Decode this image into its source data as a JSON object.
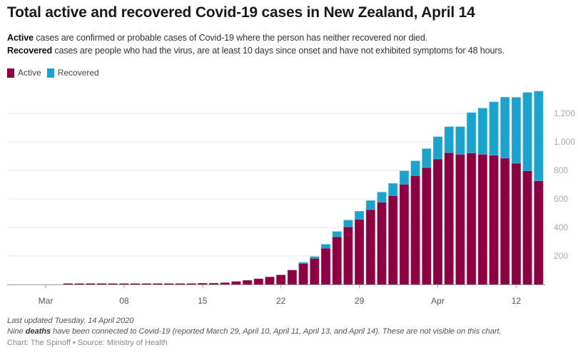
{
  "title": "Total active and recovered Covid-19 cases in New Zealand, April 14",
  "description": {
    "line1_bold": "Active",
    "line1_rest": " cases are confirmed or probable cases of Covid-19 where the person has neither recovered nor died.",
    "line2_bold": "Recovered",
    "line2_rest": " cases are people who had the virus, are at least 10 days since onset and have not exhibited symptoms for 48 hours."
  },
  "notes": {
    "updated": "Last updated Tuesday, 14 April 2020",
    "deaths_pre": "Nine ",
    "deaths_bold": "deaths",
    "deaths_post": " have been connected to Covid-19 (reported March 29, April 10, April 11, April 13, and April 14). These are not visible on this chart."
  },
  "credit": "Chart: The Spinoff • Source: Ministry of Health",
  "colors": {
    "active": "#8c0042",
    "recovered": "#1ba3cf",
    "grid": "#ececec",
    "axis": "#999999",
    "tick_label": "#aaaaaa"
  },
  "chart_data": {
    "type": "bar",
    "stacked": true,
    "title": "Total active and recovered Covid-19 cases in New Zealand, April 14",
    "xlabel": "",
    "ylabel": "",
    "ylim": [
      0,
      1400
    ],
    "y_ticks": [
      200,
      400,
      600,
      800,
      1000,
      1200
    ],
    "y_tick_labels": [
      "200",
      "400",
      "600",
      "800",
      "1,000",
      "1,200"
    ],
    "x_ticks": [
      {
        "day": "Mar 1",
        "label": "Mar"
      },
      {
        "day": "Mar 8",
        "label": "08"
      },
      {
        "day": "Mar 15",
        "label": "15"
      },
      {
        "day": "Mar 22",
        "label": "22"
      },
      {
        "day": "Mar 29",
        "label": "29"
      },
      {
        "day": "Apr 5",
        "label": "Apr"
      },
      {
        "day": "Apr 12",
        "label": "12"
      }
    ],
    "grid": true,
    "legend": "top-left",
    "categories": [
      "Mar 1",
      "Mar 2",
      "Mar 3",
      "Mar 4",
      "Mar 5",
      "Mar 6",
      "Mar 7",
      "Mar 8",
      "Mar 9",
      "Mar 10",
      "Mar 11",
      "Mar 12",
      "Mar 13",
      "Mar 14",
      "Mar 15",
      "Mar 16",
      "Mar 17",
      "Mar 18",
      "Mar 19",
      "Mar 20",
      "Mar 21",
      "Mar 22",
      "Mar 23",
      "Mar 24",
      "Mar 25",
      "Mar 26",
      "Mar 27",
      "Mar 28",
      "Mar 29",
      "Mar 30",
      "Mar 31",
      "Apr 1",
      "Apr 2",
      "Apr 3",
      "Apr 4",
      "Apr 5",
      "Apr 6",
      "Apr 7",
      "Apr 8",
      "Apr 9",
      "Apr 10",
      "Apr 11",
      "Apr 12",
      "Apr 13",
      "Apr 14"
    ],
    "series": [
      {
        "name": "Active",
        "values": [
          0,
          0,
          1,
          2,
          3,
          4,
          4,
          4,
          4,
          4,
          4,
          4,
          4,
          6,
          8,
          8,
          12,
          20,
          28,
          39,
          52,
          66,
          100,
          147,
          183,
          254,
          334,
          404,
          457,
          525,
          577,
          623,
          703,
          763,
          820,
          880,
          924,
          913,
          922,
          913,
          906,
          886,
          850,
          797,
          727
        ]
      },
      {
        "name": "Recovered",
        "values": [
          0,
          0,
          0,
          0,
          0,
          0,
          0,
          0,
          0,
          0,
          0,
          0,
          0,
          0,
          0,
          0,
          0,
          0,
          0,
          0,
          0,
          0,
          0,
          8,
          12,
          27,
          37,
          47,
          56,
          63,
          70,
          85,
          93,
          103,
          132,
          156,
          182,
          193,
          283,
          323,
          374,
          427,
          462,
          549,
          628
        ]
      }
    ]
  }
}
